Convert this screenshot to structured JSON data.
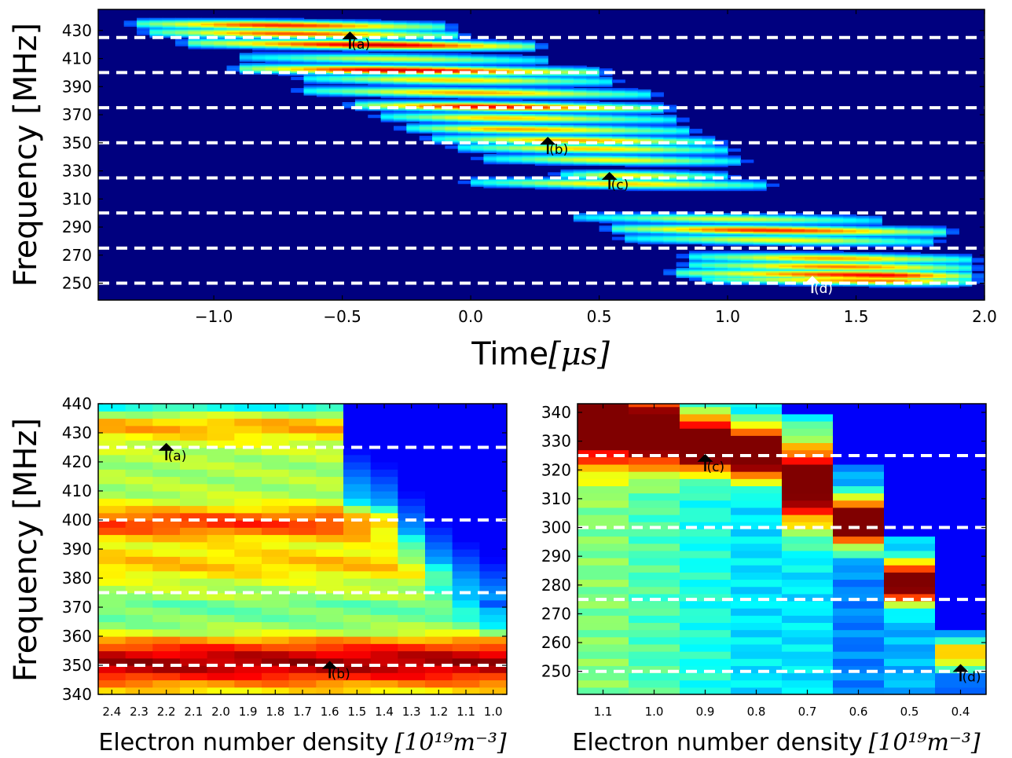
{
  "colors": {
    "colormap": "jet",
    "cutoff_line": "#ffffff",
    "annotation": "#000000"
  },
  "chart_data": [
    {
      "type": "heatmap",
      "panel": "top",
      "xlabel": "Time",
      "xlabel_unit": "[μs]",
      "ylabel": "Frequency [MHz]",
      "xlim": [
        -1.45,
        2.0
      ],
      "ylim": [
        238,
        445
      ],
      "xticks": [
        "−1.0",
        "−0.5",
        "0.0",
        "0.5",
        "1.0",
        "1.5",
        "2.0"
      ],
      "xtick_values": [
        -1.0,
        -0.5,
        0.0,
        0.5,
        1.0,
        1.5,
        2.0
      ],
      "yticks": [
        "250",
        "270",
        "290",
        "310",
        "330",
        "350",
        "370",
        "390",
        "410",
        "430"
      ],
      "ytick_values": [
        250,
        270,
        290,
        310,
        330,
        350,
        370,
        390,
        410,
        430
      ],
      "cutoff_lines_mhz": [
        425,
        400,
        375,
        350,
        325,
        300,
        275,
        250
      ],
      "chirp_bands": [
        {
          "fc": 434,
          "t_start": -1.35,
          "t_peak": -0.75,
          "t_end": -0.05,
          "amp": 0.85
        },
        {
          "fc": 428,
          "t_start": -1.3,
          "t_peak": -0.7,
          "t_end": 0.0,
          "amp": 0.8
        },
        {
          "fc": 420,
          "t_start": -1.15,
          "t_peak": -0.35,
          "t_end": 0.3,
          "amp": 0.95
        },
        {
          "fc": 410,
          "t_start": -0.95,
          "t_peak": -0.3,
          "t_end": 0.35,
          "amp": 0.55
        },
        {
          "fc": 402,
          "t_start": -0.95,
          "t_peak": -0.3,
          "t_end": 0.55,
          "amp": 0.95
        },
        {
          "fc": 395,
          "t_start": -0.7,
          "t_peak": -0.1,
          "t_end": 0.6,
          "amp": 0.65
        },
        {
          "fc": 386,
          "t_start": -0.7,
          "t_peak": 0.0,
          "t_end": 0.75,
          "amp": 0.7
        },
        {
          "fc": 376,
          "t_start": -0.5,
          "t_peak": 0.05,
          "t_end": 0.8,
          "amp": 0.9
        },
        {
          "fc": 368,
          "t_start": -0.4,
          "t_peak": 0.1,
          "t_end": 0.85,
          "amp": 0.65
        },
        {
          "fc": 360,
          "t_start": -0.3,
          "t_peak": 0.15,
          "t_end": 0.9,
          "amp": 0.7
        },
        {
          "fc": 352,
          "t_start": -0.2,
          "t_peak": 0.4,
          "t_end": 1.0,
          "amp": 0.7
        },
        {
          "fc": 346,
          "t_start": -0.1,
          "t_peak": 0.45,
          "t_end": 1.05,
          "amp": 0.65
        },
        {
          "fc": 338,
          "t_start": 0.0,
          "t_peak": 0.55,
          "t_end": 1.1,
          "amp": 0.6
        },
        {
          "fc": 327,
          "t_start": 0.3,
          "t_peak": 0.6,
          "t_end": 1.05,
          "amp": 0.6
        },
        {
          "fc": 321,
          "t_start": -0.05,
          "t_peak": 0.6,
          "t_end": 1.2,
          "amp": 0.65
        },
        {
          "fc": 296,
          "t_start": 0.35,
          "t_peak": 1.0,
          "t_end": 1.65,
          "amp": 0.55
        },
        {
          "fc": 288,
          "t_start": 0.5,
          "t_peak": 1.15,
          "t_end": 1.9,
          "amp": 0.85
        },
        {
          "fc": 281,
          "t_start": 0.55,
          "t_peak": 1.2,
          "t_end": 1.85,
          "amp": 0.6
        },
        {
          "fc": 268,
          "t_start": 0.8,
          "t_peak": 1.4,
          "t_end": 2.0,
          "amp": 0.7
        },
        {
          "fc": 262,
          "t_start": 0.8,
          "t_peak": 1.45,
          "t_end": 2.0,
          "amp": 0.75
        },
        {
          "fc": 256,
          "t_start": 0.75,
          "t_peak": 1.6,
          "t_end": 2.0,
          "amp": 0.9
        },
        {
          "fc": 252,
          "t_start": 0.85,
          "t_peak": 1.6,
          "t_end": 2.0,
          "amp": 0.75
        }
      ],
      "annotations": [
        {
          "label": "(a)",
          "x": -0.47,
          "y": 422,
          "color": "#000000"
        },
        {
          "label": "(b)",
          "x": 0.3,
          "y": 347,
          "color": "#000000"
        },
        {
          "label": "(c)",
          "x": 0.54,
          "y": 322,
          "color": "#000000"
        },
        {
          "label": "(d)",
          "x": 1.33,
          "y": 248,
          "color": "#ffffff"
        }
      ]
    },
    {
      "type": "heatmap",
      "panel": "bottom-left",
      "xlabel": "Electron number density",
      "xlabel_unit": "[10¹⁹m⁻³]",
      "ylabel": "Frequency [MHz]",
      "x": [
        2.4,
        2.3,
        2.2,
        2.1,
        2.0,
        1.9,
        1.8,
        1.7,
        1.6,
        1.5,
        1.4,
        1.3,
        1.2,
        1.1,
        1.0
      ],
      "xticks": [
        "2.4",
        "2.3",
        "2.2",
        "2.1",
        "2.0",
        "1.9",
        "1.8",
        "1.7",
        "1.6",
        "1.5",
        "1.4",
        "1.3",
        "1.2",
        "1.1",
        "1.0"
      ],
      "ylim": [
        340,
        440
      ],
      "yticks": [
        "340",
        "350",
        "360",
        "370",
        "380",
        "390",
        "400",
        "410",
        "420",
        "430",
        "440"
      ],
      "ytick_values": [
        340,
        350,
        360,
        370,
        380,
        390,
        400,
        410,
        420,
        430,
        440
      ],
      "cutoff_lines_mhz": [
        425,
        400,
        375,
        350
      ],
      "column_cutoff_mhz": [
        440,
        440,
        440,
        440,
        440,
        440,
        440,
        440,
        440,
        410,
        405,
        395,
        385,
        378,
        372
      ],
      "feature_rows": [
        {
          "f": 433,
          "w": 4,
          "a": 0.3
        },
        {
          "f": 399,
          "w": 4,
          "a": 0.28
        },
        {
          "f": 385,
          "w": 4,
          "a": 0.14
        },
        {
          "f": 351,
          "w": 6,
          "a": 0.42
        }
      ],
      "annotations": [
        {
          "label": "(a)",
          "x": 2.2,
          "y": 423,
          "color": "#000000"
        },
        {
          "label": "(b)",
          "x": 1.6,
          "y": 348,
          "color": "#000000"
        }
      ]
    },
    {
      "type": "heatmap",
      "panel": "bottom-right",
      "xlabel": "Electron number density",
      "xlabel_unit": "[10¹⁹m⁻³]",
      "ylabel": "",
      "x": [
        1.1,
        1.0,
        0.9,
        0.8,
        0.7,
        0.6,
        0.5,
        0.4
      ],
      "xticks": [
        "1.1",
        "1.0",
        "0.9",
        "0.8",
        "0.7",
        "0.6",
        "0.5",
        "0.4"
      ],
      "ylim": [
        242,
        343
      ],
      "yticks": [
        "250",
        "260",
        "270",
        "280",
        "290",
        "300",
        "310",
        "320",
        "330",
        "340"
      ],
      "ytick_values": [
        250,
        260,
        270,
        280,
        290,
        300,
        310,
        320,
        330,
        340
      ],
      "cutoff_lines_mhz": [
        325,
        300,
        275,
        250
      ],
      "column_peak": [
        {
          "peak": 337,
          "w": 10,
          "a": 0.75,
          "base": 0.5,
          "cut": 345
        },
        {
          "peak": 333,
          "w": 8,
          "a": 0.8,
          "base": 0.45,
          "cut": 345
        },
        {
          "peak": 329,
          "w": 6,
          "a": 0.95,
          "base": 0.4,
          "cut": 345
        },
        {
          "peak": 326,
          "w": 6,
          "a": 0.95,
          "base": 0.35,
          "cut": 345
        },
        {
          "peak": 315,
          "w": 10,
          "a": 0.75,
          "base": 0.35,
          "cut": 340
        },
        {
          "peak": 302,
          "w": 6,
          "a": 0.92,
          "base": 0.25,
          "cut": 322
        },
        {
          "peak": 281,
          "w": 5,
          "a": 0.85,
          "base": 0.3,
          "cut": 297
        },
        {
          "peak": 256,
          "w": 4,
          "a": 0.5,
          "base": 0.2,
          "cut": 264
        }
      ],
      "annotations": [
        {
          "label": "(c)",
          "x": 0.9,
          "y": 322,
          "color": "#000000"
        },
        {
          "label": "(d)",
          "x": 0.4,
          "y": 249,
          "color": "#000000"
        }
      ]
    }
  ]
}
